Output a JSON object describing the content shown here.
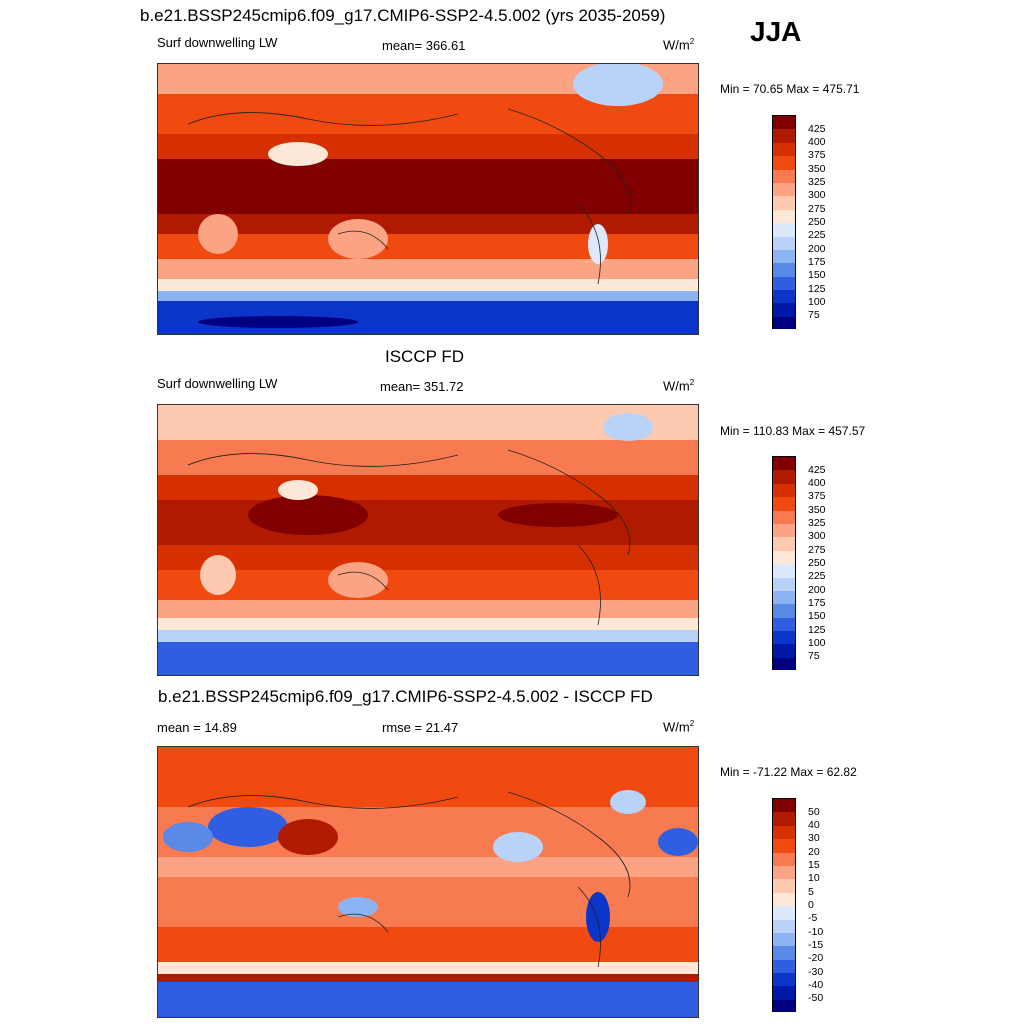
{
  "season": "JJA",
  "panels": [
    {
      "title": "b.e21.BSSP245cmip6.f09_g17.CMIP6-SSP2-4.5.002 (yrs 2035-2059)",
      "left_label": "Surf downwelling LW",
      "center_label": "mean= 366.61",
      "units": "W/m",
      "units_sup": "2",
      "minmax": "Min =  70.65 Max = 475.71",
      "colorbar_labels": [
        "425",
        "400",
        "375",
        "350",
        "325",
        "300",
        "275",
        "250",
        "225",
        "200",
        "175",
        "150",
        "125",
        "100",
        "75"
      ]
    },
    {
      "title": "ISCCP FD",
      "left_label": "Surf downwelling LW",
      "center_label": "mean= 351.72",
      "units": "W/m",
      "units_sup": "2",
      "minmax": "Min = 110.83 Max = 457.57",
      "colorbar_labels": [
        "425",
        "400",
        "375",
        "350",
        "325",
        "300",
        "275",
        "250",
        "225",
        "200",
        "175",
        "150",
        "125",
        "100",
        "75"
      ]
    },
    {
      "title": "b.e21.BSSP245cmip6.f09_g17.CMIP6-SSP2-4.5.002 - ISCCP FD",
      "left_label": "mean =  14.89",
      "center_label": "rmse =  21.47",
      "units": "W/m",
      "units_sup": "2",
      "minmax": "Min = -71.22 Max =  62.82",
      "colorbar_labels": [
        "50",
        "40",
        "30",
        "20",
        "15",
        "10",
        "5",
        "0",
        "-5",
        "-10",
        "-15",
        "-20",
        "-30",
        "-40",
        "-50"
      ]
    }
  ],
  "colors": {
    "abs_scale": [
      "#800000",
      "#b01a00",
      "#d63000",
      "#f04a10",
      "#f87a50",
      "#fca384",
      "#fdc9b0",
      "#fde8d8",
      "#dce9fb",
      "#b9d3f8",
      "#8db4f2",
      "#5a8ae8",
      "#2f5fe0",
      "#0a35c8",
      "#0018a8",
      "#000080"
    ],
    "diff_scale": [
      "#800000",
      "#b01a00",
      "#d63000",
      "#f04a10",
      "#f87a50",
      "#fca384",
      "#fdc9b0",
      "#fde8d8",
      "#dce9fb",
      "#b9d3f8",
      "#8db4f2",
      "#5a8ae8",
      "#2f5fe0",
      "#0a35c8",
      "#0018a8",
      "#000080"
    ]
  }
}
